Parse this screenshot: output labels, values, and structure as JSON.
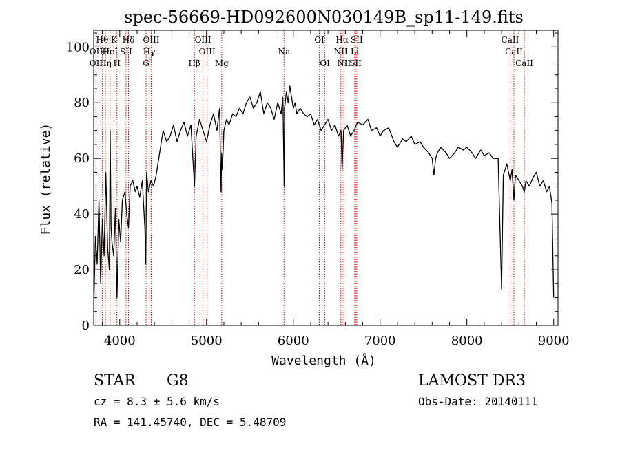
{
  "chart_data": {
    "type": "line",
    "title": "spec-56669-HD092600N030149B_sp11-149.fits",
    "xlabel": "Wavelength (Å)",
    "ylabel": "Flux (relative)",
    "xlim": [
      3700,
      9050
    ],
    "ylim": [
      0,
      106
    ],
    "x_ticks": [
      4000,
      5000,
      6000,
      7000,
      8000,
      9000
    ],
    "x_tick_labels": [
      "4000",
      "5000",
      "6000",
      "7000",
      "8000",
      "9000"
    ],
    "y_ticks": [
      0,
      20,
      40,
      60,
      80,
      100
    ],
    "y_tick_labels": [
      "0",
      "20",
      "40",
      "60",
      "80",
      "100"
    ],
    "grid": false,
    "series": [
      {
        "name": "flux",
        "color": "#000000",
        "x": [
          3700,
          3720,
          3740,
          3760,
          3780,
          3800,
          3820,
          3840,
          3860,
          3880,
          3890,
          3900,
          3910,
          3930,
          3950,
          3968,
          3990,
          4010,
          4030,
          4060,
          4080,
          4101,
          4120,
          4150,
          4180,
          4200,
          4230,
          4260,
          4290,
          4300,
          4310,
          4330,
          4360,
          4390,
          4420,
          4460,
          4500,
          4540,
          4580,
          4620,
          4660,
          4700,
          4740,
          4780,
          4820,
          4861,
          4880,
          4920,
          4960,
          5000,
          5040,
          5080,
          5120,
          5150,
          5168,
          5175,
          5183,
          5200,
          5230,
          5260,
          5300,
          5340,
          5380,
          5420,
          5460,
          5500,
          5540,
          5580,
          5620,
          5660,
          5700,
          5740,
          5780,
          5820,
          5860,
          5880,
          5890,
          5895,
          5900,
          5920,
          5940,
          5960,
          5980,
          6000,
          6020,
          6040,
          6080,
          6120,
          6160,
          6200,
          6240,
          6280,
          6320,
          6360,
          6400,
          6440,
          6480,
          6520,
          6550,
          6563,
          6580,
          6620,
          6660,
          6700,
          6740,
          6800,
          6860,
          6900,
          6960,
          7000,
          7040,
          7100,
          7160,
          7200,
          7260,
          7300,
          7360,
          7400,
          7460,
          7500,
          7560,
          7600,
          7620,
          7640,
          7660,
          7700,
          7760,
          7800,
          7860,
          7900,
          7960,
          8000,
          8060,
          8100,
          8160,
          8200,
          8260,
          8300,
          8360,
          8400,
          8420,
          8440,
          8460,
          8500,
          8520,
          8542,
          8560,
          8600,
          8640,
          8662,
          8680,
          8720,
          8760,
          8800,
          8840,
          8880,
          8920,
          8950,
          8980,
          9000
        ],
        "y": [
          5,
          32,
          22,
          45,
          15,
          38,
          25,
          55,
          28,
          20,
          70,
          35,
          30,
          25,
          42,
          10,
          38,
          30,
          45,
          48,
          40,
          35,
          50,
          52,
          48,
          50,
          46,
          52,
          35,
          22,
          55,
          48,
          52,
          50,
          54,
          62,
          70,
          66,
          68,
          72,
          66,
          70,
          73,
          68,
          72,
          50,
          68,
          74,
          70,
          66,
          72,
          76,
          70,
          78,
          48,
          62,
          56,
          70,
          74,
          72,
          76,
          75,
          78,
          76,
          80,
          82,
          78,
          80,
          84,
          76,
          80,
          78,
          74,
          80,
          76,
          82,
          60,
          50,
          78,
          84,
          80,
          86,
          82,
          78,
          80,
          76,
          78,
          76,
          75,
          76,
          72,
          74,
          70,
          72,
          74,
          70,
          72,
          68,
          70,
          56,
          70,
          72,
          68,
          70,
          73,
          72,
          74,
          70,
          71,
          68,
          70,
          71,
          66,
          64,
          67,
          66,
          68,
          65,
          66,
          64,
          62,
          60,
          54,
          60,
          62,
          64,
          62,
          60,
          62,
          64,
          63,
          64,
          62,
          60,
          63,
          61,
          62,
          60,
          60,
          13,
          54,
          56,
          58,
          52,
          56,
          45,
          54,
          52,
          50,
          48,
          52,
          50,
          53,
          55,
          50,
          52,
          48,
          50,
          44,
          10
        ],
        "segments": 3
      }
    ],
    "line_labels": [
      {
        "text": "Hθ",
        "x": 3798,
        "row": 1,
        "color": "#000000"
      },
      {
        "text": "K",
        "x": 3934,
        "row": 1,
        "color": "#000000"
      },
      {
        "text": "Hδ",
        "x": 4101,
        "row": 1,
        "color": "#000000"
      },
      {
        "text": "OIII",
        "x": 4363,
        "row": 1,
        "color": "#000000"
      },
      {
        "text": "OIII",
        "x": 4959,
        "row": 1,
        "color": "#000000"
      },
      {
        "text": "OI",
        "x": 6300,
        "row": 1,
        "color": "#000000"
      },
      {
        "text": "Hα",
        "x": 6563,
        "row": 1,
        "color": "#000000"
      },
      {
        "text": "SII",
        "x": 6731,
        "row": 1,
        "color": "#000000"
      },
      {
        "text": "CaII",
        "x": 8498,
        "row": 1,
        "color": "#000000"
      },
      {
        "text": "OII",
        "x": 3727,
        "row": 2,
        "color": "#000000"
      },
      {
        "text": "Hε",
        "x": 3835,
        "row": 2,
        "color": "#000000"
      },
      {
        "text": "HeI",
        "x": 3889,
        "row": 2,
        "color": "#000000"
      },
      {
        "text": "SII",
        "x": 4072,
        "row": 2,
        "color": "#000000"
      },
      {
        "text": "Hγ",
        "x": 4340,
        "row": 2,
        "color": "#000000"
      },
      {
        "text": "OIII",
        "x": 5007,
        "row": 2,
        "color": "#000000"
      },
      {
        "text": "Na",
        "x": 5893,
        "row": 2,
        "color": "#000000"
      },
      {
        "text": "NII",
        "x": 6548,
        "row": 2,
        "color": "#000000"
      },
      {
        "text": "Li",
        "x": 6708,
        "row": 2,
        "color": "#000000"
      },
      {
        "text": "CaII",
        "x": 8542,
        "row": 2,
        "color": "#000000"
      },
      {
        "text": "OII",
        "x": 3727,
        "row": 3,
        "color": "#000000"
      },
      {
        "text": "Hη",
        "x": 3835,
        "row": 3,
        "color": "#000000"
      },
      {
        "text": "H",
        "x": 3968,
        "row": 3,
        "color": "#000000"
      },
      {
        "text": "G",
        "x": 4304,
        "row": 3,
        "color": "#000000"
      },
      {
        "text": "Hβ",
        "x": 4861,
        "row": 3,
        "color": "#000000"
      },
      {
        "text": "Mg",
        "x": 5175,
        "row": 3,
        "color": "#000000"
      },
      {
        "text": "OI",
        "x": 6364,
        "row": 3,
        "color": "#000000"
      },
      {
        "text": "NII",
        "x": 6583,
        "row": 3,
        "color": "#000000"
      },
      {
        "text": "SII",
        "x": 6717,
        "row": 3,
        "color": "#000000"
      },
      {
        "text": "CaII",
        "x": 8662,
        "row": 3,
        "color": "#000000"
      }
    ],
    "marker_lines": [
      3727,
      3798,
      3835,
      3889,
      3934,
      3968,
      4072,
      4101,
      4304,
      4340,
      4363,
      4861,
      4959,
      5007,
      5175,
      5893,
      6300,
      6364,
      6548,
      6563,
      6583,
      6708,
      6717,
      6731,
      8498,
      8542,
      8662
    ],
    "marker_color": "#cc0000"
  },
  "info": {
    "object_class": "STAR",
    "subclass": "G8",
    "survey": "LAMOST DR3",
    "redshift": "cz =  8.3 ± 5.6 km/s",
    "obs_date": "Obs-Date: 20140111",
    "coords": "RA = 141.45740, DEC =    5.48709"
  }
}
